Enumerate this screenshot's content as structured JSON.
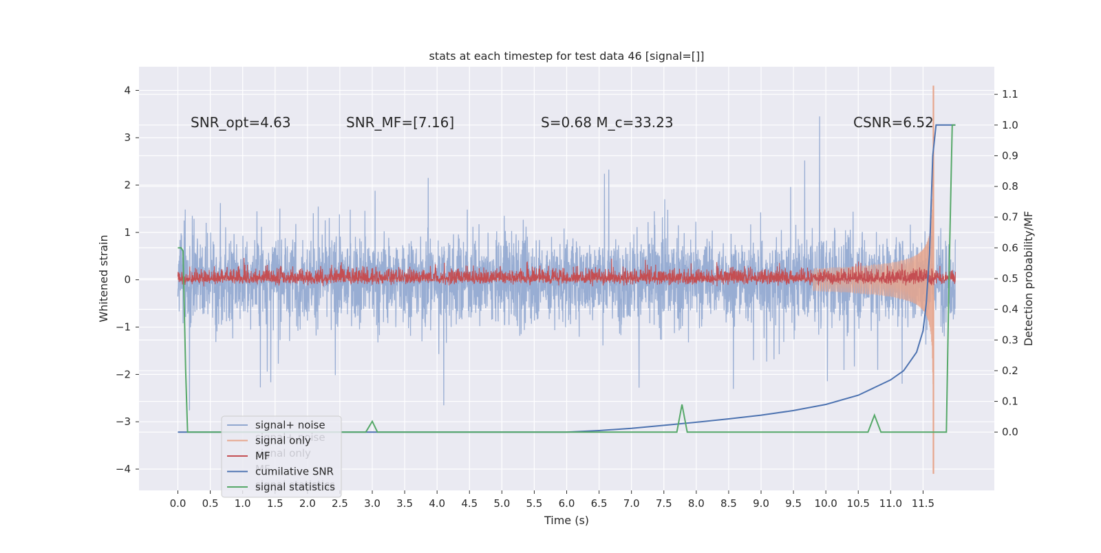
{
  "chart_data": {
    "type": "line",
    "title": "stats at each timestep for test data 46 [signal=[]]",
    "xlabel": "Time (s)",
    "ylabel": "Whitened strain",
    "ylabel_right": "Detection probability/MF",
    "xlim": [
      -0.6,
      12.6
    ],
    "ylim": [
      -4.45,
      4.5
    ],
    "ylim_right": [
      -0.19,
      1.19
    ],
    "x_ticks": [
      0.0,
      0.5,
      1.0,
      1.5,
      2.0,
      2.5,
      3.0,
      3.5,
      4.0,
      4.5,
      5.0,
      5.5,
      6.0,
      6.5,
      7.0,
      7.5,
      8.0,
      8.5,
      9.0,
      9.5,
      10.0,
      10.5,
      11.0,
      11.5
    ],
    "x_tick_labels": [
      "0.0",
      "0.5",
      "1.0",
      "1.5",
      "2.0",
      "2.5",
      "3.0",
      "3.5",
      "4.0",
      "4.5",
      "5.0",
      "5.5",
      "6.0",
      "6.5",
      "7.0",
      "7.5",
      "8.0",
      "8.5",
      "9.0",
      "9.5",
      "10.0",
      "10.5",
      "11.0",
      "11.5"
    ],
    "y_ticks": [
      -4,
      -3,
      -2,
      -1,
      0,
      1,
      2,
      3,
      4
    ],
    "y_tick_labels": [
      "−4",
      "−3",
      "−2",
      "−1",
      "0",
      "1",
      "2",
      "3",
      "4"
    ],
    "y_ticks_right": [
      0.0,
      0.1,
      0.2,
      0.3,
      0.4,
      0.5,
      0.6,
      0.7,
      0.8,
      0.9,
      1.0,
      1.1
    ],
    "y_tick_labels_right": [
      "0.0",
      "0.1",
      "0.2",
      "0.3",
      "0.4",
      "0.5",
      "0.6",
      "0.7",
      "0.8",
      "0.9",
      "1.0",
      "1.1"
    ],
    "grid": true,
    "legend_position": "lower-left",
    "legend": [
      {
        "label": "signal+ noise",
        "color": "#8fa6cf"
      },
      {
        "label": "signal only",
        "color": "#e6a58c"
      },
      {
        "label": "MF",
        "color": "#c44e52"
      },
      {
        "label": "cumilative SNR",
        "color": "#4c72b0"
      },
      {
        "label": "signal statistics",
        "color": "#55a868"
      }
    ],
    "ghost_legend_labels": [
      "signal+ noise",
      "signal only",
      "MF",
      "signal statistics"
    ],
    "annotations": [
      {
        "text": "SNR_opt=4.63"
      },
      {
        "text": "SNR_MF=[7.16]"
      },
      {
        "text": "S=0.68   M_c=33.23"
      },
      {
        "text": "CSNR=6.52"
      }
    ],
    "series": [
      {
        "name": "signal+ noise",
        "axis": "left",
        "color": "#8fa6cf",
        "x_range": [
          0.0,
          12.0
        ],
        "y_range": [
          -3.5,
          4.1
        ],
        "y_typical_band": [
          -1.3,
          1.3
        ]
      },
      {
        "name": "signal only",
        "axis": "left",
        "color": "#e6a58c",
        "x_range": [
          0.0,
          11.68
        ],
        "peak": {
          "x": 11.66,
          "y_max": 4.1,
          "y_min": -4.1
        }
      },
      {
        "name": "MF",
        "axis": "right",
        "color": "#c44e52",
        "x_range": [
          0.0,
          12.0
        ],
        "y_typical_band": [
          0.45,
          0.55
        ]
      },
      {
        "name": "cumilative SNR",
        "axis": "right",
        "color": "#4c72b0",
        "x": [
          0.0,
          6.0,
          6.5,
          7.0,
          7.5,
          8.0,
          8.5,
          9.0,
          9.5,
          10.0,
          10.5,
          11.0,
          11.2,
          11.4,
          11.5,
          11.55,
          11.6,
          11.65,
          11.7,
          12.0
        ],
        "y": [
          0.0,
          0.0,
          0.005,
          0.012,
          0.022,
          0.032,
          0.043,
          0.055,
          0.07,
          0.09,
          0.12,
          0.17,
          0.2,
          0.26,
          0.33,
          0.42,
          0.58,
          0.9,
          1.0,
          1.0
        ]
      },
      {
        "name": "signal statistics",
        "axis": "right",
        "color": "#55a868",
        "x": [
          0.0,
          0.05,
          0.08,
          0.12,
          0.15,
          0.2,
          2.9,
          3.0,
          3.08,
          7.7,
          7.78,
          7.86,
          10.65,
          10.75,
          10.85,
          11.86,
          11.9,
          11.95,
          12.0
        ],
        "y": [
          0.6,
          0.6,
          0.59,
          0.2,
          0.0,
          0.0,
          0.0,
          0.035,
          0.0,
          0.0,
          0.09,
          0.0,
          0.0,
          0.055,
          0.0,
          0.0,
          0.5,
          1.0,
          1.0
        ]
      }
    ]
  }
}
